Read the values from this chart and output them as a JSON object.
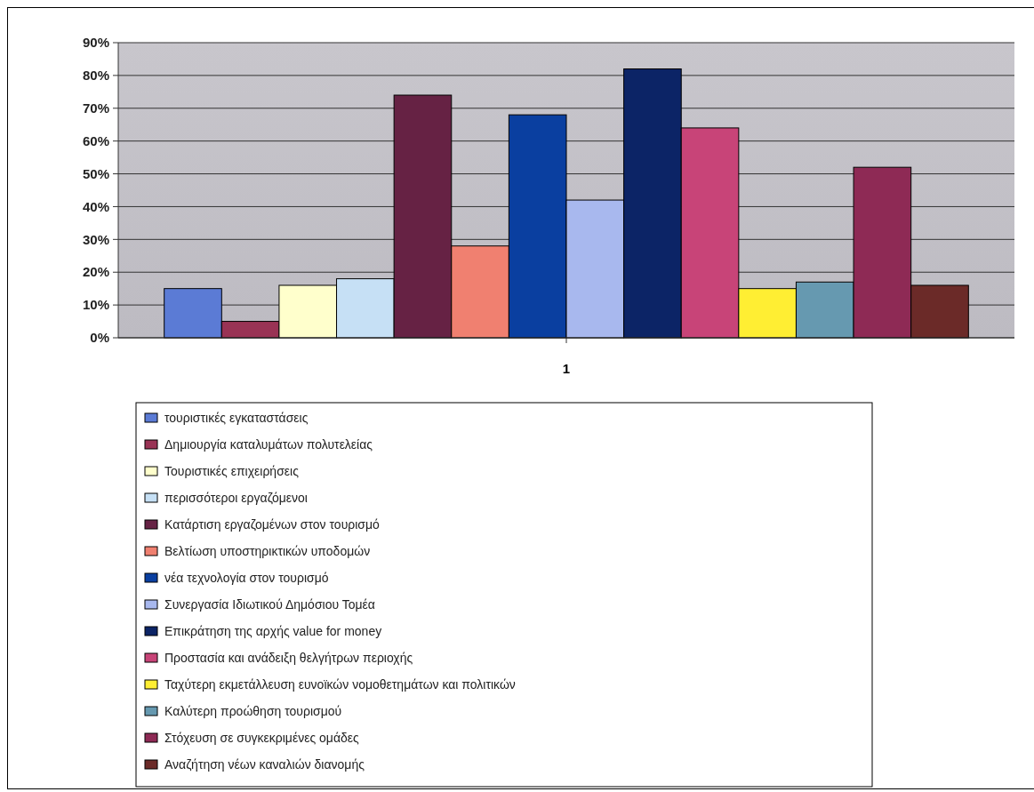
{
  "chart_data": {
    "type": "bar",
    "categories": [
      "1"
    ],
    "series": [
      {
        "name": "τουριστικές εγκαταστάσεις",
        "color": "#5b7bd5",
        "values": [
          15
        ]
      },
      {
        "name": "Δημιουργία καταλυμάτων πολυτελείας",
        "color": "#993355",
        "values": [
          5
        ]
      },
      {
        "name": "Τουριστικές επιχειρήσεις",
        "color": "#ffffcc",
        "values": [
          16
        ]
      },
      {
        "name": "περισσότεροι εργαζόμενοι",
        "color": "#c6e0f5",
        "values": [
          18
        ]
      },
      {
        "name": "Κατάρτιση εργαζομένων στον τουρισμό",
        "color": "#662244",
        "values": [
          74
        ]
      },
      {
        "name": "Βελτίωση υποστηρικτικών υποδομών",
        "color": "#f08070",
        "values": [
          28
        ]
      },
      {
        "name": "νέα τεχνολογία στον τουρισμό",
        "color": "#0a3fa0",
        "values": [
          68
        ]
      },
      {
        "name": "Συνεργασία Ιδιωτικού Δημόσιου Τομέα",
        "color": "#a8b8ee",
        "values": [
          42
        ]
      },
      {
        "name": "Επικράτηση της αρχής value for money",
        "color": "#0c2466",
        "values": [
          82
        ]
      },
      {
        "name": "Προστασία και ανάδειξη θελγήτρων περιοχής",
        "color": "#c84478",
        "values": [
          64
        ]
      },
      {
        "name": "Ταχύτερη εκμετάλλευση ευνοϊκών νομοθετημάτων και πολιτικών",
        "color": "#ffee33",
        "values": [
          15
        ]
      },
      {
        "name": "Καλύτερη προώθηση τουρισμού",
        "color": "#6699b0",
        "values": [
          17
        ]
      },
      {
        "name": "Στόχευση σε συγκεκριμένες ομάδες",
        "color": "#8e2a55",
        "values": [
          52
        ]
      },
      {
        "name": "Αναζήτηση νέων καναλιών διανομής",
        "color": "#6b2a28",
        "values": [
          16
        ]
      }
    ],
    "ylim": [
      0,
      90
    ],
    "yticks": [
      {
        "value": 0,
        "label": "0%"
      },
      {
        "value": 10,
        "label": "10%"
      },
      {
        "value": 20,
        "label": "20%"
      },
      {
        "value": 30,
        "label": "30%"
      },
      {
        "value": 40,
        "label": "40%"
      },
      {
        "value": 50,
        "label": "50%"
      },
      {
        "value": 60,
        "label": "60%"
      },
      {
        "value": 70,
        "label": "70%"
      },
      {
        "value": 80,
        "label": "80%"
      },
      {
        "value": 90,
        "label": "90%"
      }
    ],
    "grid": "y",
    "legend": "bottom"
  }
}
